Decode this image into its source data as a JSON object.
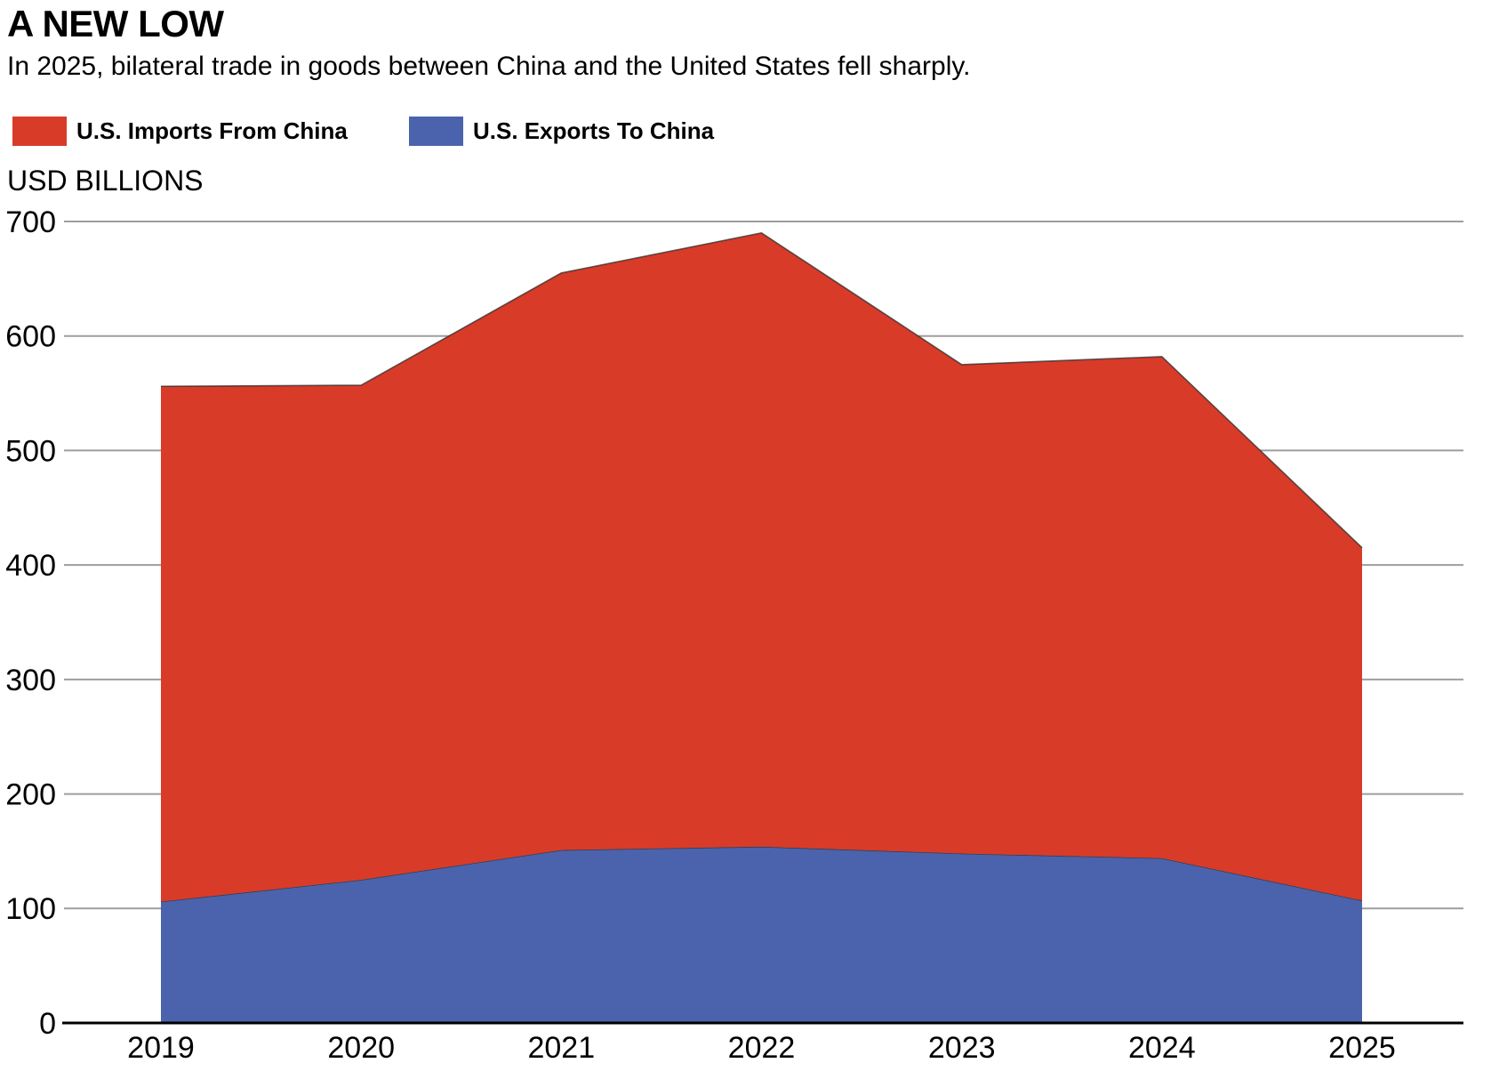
{
  "header": {
    "title": "A NEW LOW",
    "subtitle": "In 2025, bilateral trade in goods between China and the United States fell sharply."
  },
  "legend": [
    {
      "label": "U.S. Imports From China",
      "color": "#D93B29"
    },
    {
      "label": "U.S. Exports To China",
      "color": "#4A63AC"
    }
  ],
  "chart_data": {
    "type": "area",
    "stacked": true,
    "title": "A NEW LOW",
    "subtitle": "In 2025, bilateral trade in goods between China and the United States fell sharply.",
    "ylabel": "USD BILLIONS",
    "xlabel": "",
    "x": [
      "2019",
      "2020",
      "2021",
      "2022",
      "2023",
      "2024",
      "2025"
    ],
    "series": [
      {
        "name": "U.S. Exports To China",
        "color": "#4A63AC",
        "values": [
          106,
          125,
          151,
          154,
          148,
          144,
          107
        ]
      },
      {
        "name": "U.S. Imports From China",
        "color": "#D93B29",
        "values": [
          450,
          432,
          504,
          536,
          427,
          438,
          308
        ]
      }
    ],
    "stack_totals": [
      556,
      557,
      655,
      690,
      575,
      582,
      415
    ],
    "ylim": [
      0,
      700
    ],
    "yticks": [
      0,
      100,
      200,
      300,
      400,
      500,
      600,
      700
    ],
    "grid": true,
    "gridline_color": "#9E9E9E",
    "baseline_color": "#000000",
    "legend_position": "top-left"
  }
}
